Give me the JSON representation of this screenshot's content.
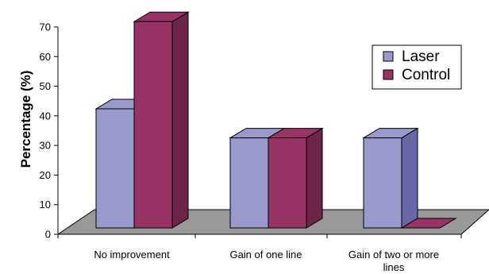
{
  "chart_data": {
    "type": "bar",
    "categories": [
      "No improvement",
      "Gain of one line",
      "Gain of  two or more lines"
    ],
    "category_lines": [
      [
        "No improvement"
      ],
      [
        "Gain of one line"
      ],
      [
        "Gain of  two or more",
        "lines"
      ]
    ],
    "series": [
      {
        "name": "Laser",
        "values": [
          41,
          31,
          31
        ],
        "color": "#9999cc",
        "dark": "#6868a8",
        "darker": "#55558a"
      },
      {
        "name": "Control",
        "values": [
          71,
          31,
          0
        ],
        "color": "#993366",
        "dark": "#6e2449",
        "darker": "#5a1d3c"
      }
    ],
    "title": "",
    "xlabel": "",
    "ylabel": "Percentage (%)",
    "ylim": [
      0,
      70
    ],
    "yticks": [
      0,
      10,
      20,
      30,
      40,
      50,
      60,
      70
    ],
    "floor_color": "#999999",
    "legend": {
      "position": "top-right",
      "entries": [
        "Laser",
        "Control"
      ]
    },
    "grid": false
  }
}
